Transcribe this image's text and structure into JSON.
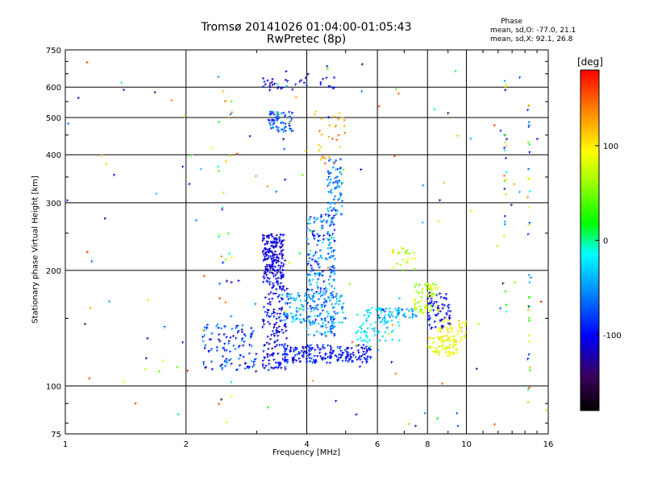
{
  "chart_data": {
    "type": "scatter",
    "title": "Tromsø 20141026 01:04:00-01:05:43",
    "subtitle": "RwPretec (8p)",
    "xlabel": "Frequency [MHz]",
    "ylabel": "Stationary phase Virtual Height [km]",
    "xscale": "log",
    "yscale": "log",
    "xlim": [
      1,
      16
    ],
    "ylim": [
      75,
      750
    ],
    "xticks": [
      1,
      2,
      4,
      6,
      8,
      10,
      16
    ],
    "yticks": [
      75,
      100,
      200,
      300,
      400,
      500,
      600,
      750
    ],
    "grid": true,
    "colorbar": {
      "label": "[deg]",
      "range": [
        -180,
        180
      ],
      "ticks": [
        -100,
        0,
        100
      ]
    },
    "phase_stats": {
      "heading": "Phase",
      "o_mode": "mean, sd,O: -77.0, 21.1",
      "x_mode": "mean, sd,X:  92.1, 26.8"
    },
    "clusters": [
      {
        "x": [
          3.1,
          3.5
        ],
        "y": [
          190,
          250
        ],
        "n": 180,
        "phase": [
          -130,
          -90
        ]
      },
      {
        "x": [
          3.1,
          3.6
        ],
        "y": [
          110,
          190
        ],
        "n": 160,
        "phase": [
          -130,
          -80
        ]
      },
      {
        "x": [
          2.2,
          3.0
        ],
        "y": [
          110,
          145
        ],
        "n": 110,
        "phase": [
          -120,
          -40
        ]
      },
      {
        "x": [
          3.5,
          5.8
        ],
        "y": [
          115,
          128
        ],
        "n": 200,
        "phase": [
          -125,
          -70
        ]
      },
      {
        "x": [
          4.0,
          4.7
        ],
        "y": [
          135,
          280
        ],
        "n": 240,
        "phase": [
          -110,
          -20
        ]
      },
      {
        "x": [
          4.5,
          4.9
        ],
        "y": [
          280,
          390
        ],
        "n": 70,
        "phase": [
          -90,
          -30
        ]
      },
      {
        "x": [
          3.4,
          5.0
        ],
        "y": [
          145,
          175
        ],
        "n": 110,
        "phase": [
          -70,
          -20
        ]
      },
      {
        "x": [
          5.3,
          6.8
        ],
        "y": [
          130,
          160
        ],
        "n": 80,
        "phase": [
          -40,
          -10
        ]
      },
      {
        "x": [
          6.0,
          7.5
        ],
        "y": [
          150,
          160
        ],
        "n": 40,
        "phase": [
          -70,
          -20
        ]
      },
      {
        "x": [
          3.2,
          3.7
        ],
        "y": [
          460,
          520
        ],
        "n": 60,
        "phase": [
          -110,
          -40
        ]
      },
      {
        "x": [
          3.1,
          4.7
        ],
        "y": [
          590,
          640
        ],
        "n": 35,
        "phase": [
          -130,
          -80
        ]
      },
      {
        "x": [
          7.4,
          8.6
        ],
        "y": [
          155,
          185
        ],
        "n": 70,
        "phase": [
          40,
          100
        ]
      },
      {
        "x": [
          8.0,
          9.5
        ],
        "y": [
          120,
          135
        ],
        "n": 60,
        "phase": [
          70,
          110
        ]
      },
      {
        "x": [
          8.5,
          10.0
        ],
        "y": [
          130,
          150
        ],
        "n": 50,
        "phase": [
          80,
          120
        ]
      },
      {
        "x": [
          8.0,
          9.2
        ],
        "y": [
          140,
          175
        ],
        "n": 60,
        "phase": [
          -130,
          -80
        ]
      },
      {
        "x": [
          6.5,
          7.5
        ],
        "y": [
          200,
          230
        ],
        "n": 25,
        "phase": [
          50,
          110
        ]
      },
      {
        "x": [
          4.1,
          5.0
        ],
        "y": [
          380,
          520
        ],
        "n": 30,
        "phase": [
          110,
          150
        ]
      },
      {
        "x": [
          2.4,
          2.6
        ],
        "y": [
          85,
          640
        ],
        "n": 30,
        "phase": [
          -130,
          170
        ]
      },
      {
        "x": [
          12.4,
          12.6
        ],
        "y": [
          150,
          640
        ],
        "n": 25,
        "phase": [
          -120,
          160
        ]
      },
      {
        "x": [
          14.2,
          14.4
        ],
        "y": [
          90,
          540
        ],
        "n": 35,
        "phase": [
          -120,
          160
        ]
      },
      {
        "x": [
          1.0,
          16.0
        ],
        "y": [
          78,
          700
        ],
        "n": 150,
        "phase": [
          -150,
          170
        ]
      }
    ]
  }
}
